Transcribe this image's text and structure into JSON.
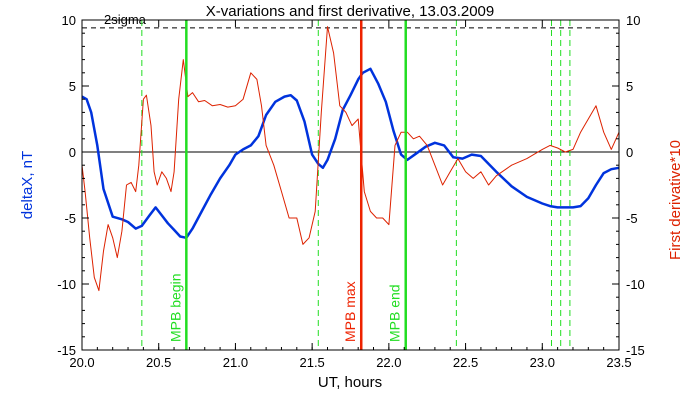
{
  "chart_data": {
    "type": "line",
    "title": "X-variations and first derivative, 13.03.2009",
    "xlabel": "UT, hours",
    "ylabel_left": "deltaX, nT",
    "ylabel_right": "First derivative*10",
    "xlim": [
      20.0,
      23.5
    ],
    "ylim": [
      -15,
      10
    ],
    "xticks": [
      "20.0",
      "20.5",
      "21.0",
      "21.5",
      "22.0",
      "22.5",
      "23.0",
      "23.5"
    ],
    "yticks_left": [
      "10",
      "5",
      "0",
      "-5",
      "-10",
      "-15"
    ],
    "yticks_right": [
      "10",
      "5",
      "0",
      "-5",
      "-10",
      "-15"
    ],
    "sigma_label": "2sigma",
    "sigma_level": 9.4,
    "colors": {
      "deltaX": "#0033dd",
      "derivative": "#dd2200",
      "mpb_edge": "#22dd22",
      "mpb_max": "#ee2200",
      "dashed": "#22dd22"
    },
    "series": [
      {
        "name": "deltaX, nT",
        "axis": "left",
        "x": [
          20.0,
          20.03,
          20.06,
          20.1,
          20.14,
          20.2,
          20.26,
          20.3,
          20.35,
          20.39,
          20.44,
          20.48,
          20.52,
          20.56,
          20.6,
          20.64,
          20.68,
          20.72,
          20.78,
          20.84,
          20.9,
          20.96,
          21.0,
          21.05,
          21.1,
          21.15,
          21.2,
          21.26,
          21.32,
          21.36,
          21.4,
          21.45,
          21.5,
          21.54,
          21.57,
          21.6,
          21.65,
          21.7,
          21.75,
          21.8,
          21.83,
          21.88,
          21.93,
          21.98,
          22.03,
          22.08,
          22.12,
          22.18,
          22.24,
          22.3,
          22.36,
          22.42,
          22.48,
          22.54,
          22.6,
          22.7,
          22.8,
          22.9,
          23.0,
          23.05,
          23.1,
          23.2,
          23.25,
          23.3,
          23.35,
          23.4,
          23.45,
          23.5
        ],
        "y": [
          4.2,
          4.0,
          3.0,
          0.5,
          -2.8,
          -4.9,
          -5.1,
          -5.3,
          -5.8,
          -5.6,
          -4.8,
          -4.2,
          -4.8,
          -5.4,
          -5.9,
          -6.4,
          -6.5,
          -5.8,
          -4.5,
          -3.2,
          -2.0,
          -1.0,
          -0.2,
          0.2,
          0.5,
          1.2,
          2.8,
          3.8,
          4.2,
          4.3,
          3.9,
          2.3,
          -0.2,
          -0.9,
          -1.2,
          -0.6,
          1.0,
          3.2,
          4.3,
          5.5,
          6.0,
          6.3,
          5.2,
          3.8,
          1.6,
          -0.2,
          -0.6,
          -0.1,
          0.4,
          0.7,
          0.5,
          -0.4,
          -0.5,
          -0.2,
          -0.3,
          -1.5,
          -2.6,
          -3.4,
          -3.9,
          -4.1,
          -4.2,
          -4.2,
          -4.1,
          -3.5,
          -2.5,
          -1.6,
          -1.3,
          -1.2
        ]
      },
      {
        "name": "First derivative*10",
        "axis": "right",
        "x": [
          20.0,
          20.02,
          20.05,
          20.08,
          20.11,
          20.14,
          20.17,
          20.2,
          20.23,
          20.26,
          20.29,
          20.32,
          20.35,
          20.37,
          20.4,
          20.42,
          20.45,
          20.47,
          20.49,
          20.52,
          20.55,
          20.58,
          20.6,
          20.63,
          20.66,
          20.69,
          20.72,
          20.76,
          20.8,
          20.85,
          20.9,
          20.95,
          21.0,
          21.05,
          21.1,
          21.14,
          21.17,
          21.2,
          21.25,
          21.3,
          21.35,
          21.4,
          21.44,
          21.48,
          21.52,
          21.56,
          21.6,
          21.64,
          21.68,
          21.72,
          21.76,
          21.8,
          21.84,
          21.88,
          21.92,
          21.96,
          22.0,
          22.04,
          22.08,
          22.12,
          22.16,
          22.2,
          22.25,
          22.3,
          22.35,
          22.4,
          22.45,
          22.5,
          22.55,
          22.6,
          22.65,
          22.7,
          22.8,
          22.9,
          23.0,
          23.05,
          23.1,
          23.15,
          23.2,
          23.25,
          23.3,
          23.35,
          23.4,
          23.45,
          23.5
        ],
        "y": [
          -1.0,
          -3.0,
          -6.5,
          -9.5,
          -10.5,
          -7.5,
          -5.5,
          -6.5,
          -8.0,
          -6.0,
          -2.5,
          -2.3,
          -3.0,
          -1.0,
          4.0,
          4.3,
          2.0,
          -1.5,
          -2.5,
          -1.5,
          -2.0,
          -3.0,
          -1.5,
          4.0,
          7.0,
          4.2,
          4.5,
          3.8,
          3.9,
          3.5,
          3.6,
          3.4,
          3.5,
          4.0,
          6.0,
          5.5,
          3.5,
          0.5,
          -1.0,
          -3.0,
          -5.0,
          -5.0,
          -7.0,
          -6.5,
          -4.5,
          3.0,
          9.5,
          7.5,
          3.5,
          3.0,
          2.0,
          2.5,
          -3.0,
          -4.5,
          -5.0,
          -5.0,
          -5.5,
          0.5,
          1.5,
          1.5,
          1.0,
          1.2,
          0.5,
          -1.0,
          -2.5,
          -1.5,
          -0.5,
          -1.5,
          -2.0,
          -1.5,
          -2.5,
          -1.8,
          -1.0,
          -0.5,
          0.2,
          0.5,
          0.3,
          0.0,
          0.2,
          1.5,
          2.5,
          3.5,
          1.5,
          0.2,
          1.5
        ]
      }
    ],
    "vertical_markers": [
      {
        "x": 20.68,
        "label": "MPB begin",
        "color": "#22dd22",
        "style": "solid"
      },
      {
        "x": 21.82,
        "label": "MPB max",
        "color": "#ee2200",
        "style": "solid"
      },
      {
        "x": 22.11,
        "label": "MPB end",
        "color": "#22dd22",
        "style": "solid"
      }
    ],
    "dashed_markers": [
      20.39,
      21.54,
      22.44,
      23.06,
      23.12,
      23.18
    ]
  }
}
